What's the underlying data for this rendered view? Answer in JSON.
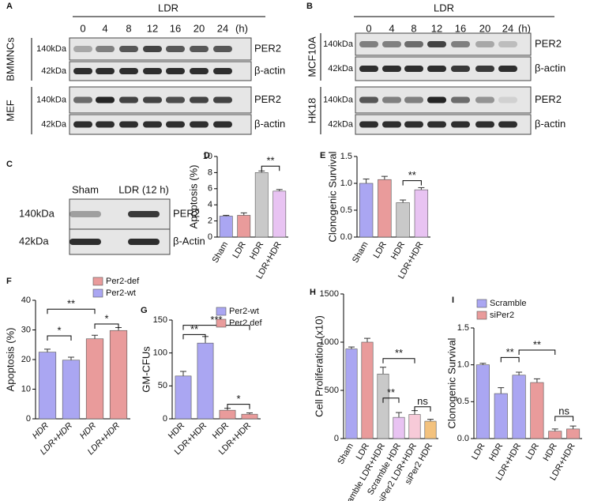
{
  "blots": {
    "A": {
      "label": "A",
      "treatment": "LDR",
      "lanes": [
        "0",
        "4",
        "8",
        "12",
        "16",
        "20",
        "24"
      ],
      "unit": "(h)",
      "groups": [
        {
          "name": "BMMNCs",
          "rows": [
            {
              "kda": "140kDa",
              "protein": "PER2"
            },
            {
              "kda": "42kDa",
              "protein": "β-actin"
            }
          ]
        },
        {
          "name": "MEF",
          "rows": [
            {
              "kda": "140kDa",
              "protein": "PER2"
            },
            {
              "kda": "42kDa",
              "protein": "β-actin"
            }
          ]
        }
      ]
    },
    "B": {
      "label": "B",
      "treatment": "LDR",
      "lanes": [
        "0",
        "4",
        "8",
        "12",
        "16",
        "20",
        "24"
      ],
      "unit": "(h)",
      "groups": [
        {
          "name": "MCF10A",
          "rows": [
            {
              "kda": "140kDa",
              "protein": "PER2"
            },
            {
              "kda": "42kDa",
              "protein": "β-actin"
            }
          ]
        },
        {
          "name": "HK18",
          "rows": [
            {
              "kda": "140kDa",
              "protein": "PER2"
            },
            {
              "kda": "42kDa",
              "protein": "β-actin"
            }
          ]
        }
      ]
    },
    "C": {
      "label": "C",
      "lanes": [
        "Sham",
        "LDR (12 h)"
      ],
      "rows": [
        {
          "kda": "140kDa",
          "protein": "PER2"
        },
        {
          "kda": "42kDa",
          "protein": "β-Actin"
        }
      ]
    }
  },
  "chart_data": [
    {
      "type": "bar",
      "label": "D",
      "y_label": "Apoptosis (%)",
      "categories": [
        "Sham",
        "LDR",
        "HDR",
        "LDR+HDR"
      ],
      "values": [
        2.6,
        2.7,
        8.0,
        5.7
      ],
      "errors": [
        0.1,
        0.3,
        0.2,
        0.2
      ],
      "colors": [
        "#aaa6f2",
        "#e99b9b",
        "#c9c9c9",
        "#e8c3f2"
      ],
      "ylim": [
        0,
        10
      ],
      "yticks": [
        0,
        2,
        4,
        6,
        8,
        10
      ],
      "annotations": [
        "**"
      ]
    },
    {
      "type": "bar",
      "label": "E",
      "y_label": "Clonogenic Survival",
      "categories": [
        "Sham",
        "LDR",
        "HDR",
        "LDR+HDR"
      ],
      "values": [
        1.0,
        1.07,
        0.64,
        0.88
      ],
      "errors": [
        0.08,
        0.06,
        0.05,
        0.04
      ],
      "colors": [
        "#aaa6f2",
        "#e99b9b",
        "#c9c9c9",
        "#e8c3f2"
      ],
      "ylim": [
        0,
        1.5
      ],
      "yticks": [
        {
          "value": 0,
          "label": "0.0"
        },
        0.5,
        {
          "value": 1,
          "label": "1.0"
        },
        1.5
      ],
      "annotations": [
        "**"
      ]
    },
    {
      "type": "bar",
      "label": "F",
      "y_label": "Apoptosis (%)",
      "categories": [
        "HDR",
        "LDR+HDR",
        "HDR",
        "LDR+HDR"
      ],
      "series": [
        {
          "name": "Per2-def",
          "color": "#e99b9b",
          "values": [
            null,
            null,
            27,
            29.8
          ],
          "errors": [
            null,
            null,
            1.2,
            1
          ]
        },
        {
          "name": "Per2-wt",
          "color": "#aaa6f2",
          "values": [
            22.5,
            19.8,
            null,
            null
          ],
          "errors": [
            1,
            1,
            null,
            null
          ]
        }
      ],
      "ylim": [
        0,
        40
      ],
      "yticks": [
        0,
        10,
        20,
        30,
        40
      ],
      "annotations": [
        "**",
        "*",
        "*"
      ]
    },
    {
      "type": "bar",
      "label": "G",
      "y_label": "GM-CFUs",
      "categories": [
        "HDR",
        "LDR+HDR",
        "HDR",
        "LDR+HDR"
      ],
      "series": [
        {
          "name": "Per2-wt",
          "color": "#aaa6f2",
          "values": [
            65,
            115,
            null,
            null
          ],
          "errors": [
            7,
            10,
            null,
            null
          ]
        },
        {
          "name": "Per2 def",
          "color": "#e99b9b",
          "values": [
            null,
            null,
            13,
            7
          ],
          "errors": [
            null,
            null,
            3,
            2
          ]
        }
      ],
      "ylim": [
        0,
        150
      ],
      "yticks": [
        0,
        50,
        100,
        150
      ],
      "annotations": [
        "**",
        "***",
        "*"
      ]
    },
    {
      "type": "bar",
      "label": "H",
      "y_label": "Cell Proliferation (x10)",
      "categories": [
        "Sham",
        "LDR",
        "Scramble LDR+HDR",
        "Scramble HDR",
        "siPer2 LDR+HDR",
        "siPer2 HDR"
      ],
      "values": [
        930,
        1000,
        670,
        220,
        250,
        180
      ],
      "errors": [
        20,
        40,
        70,
        50,
        40,
        20
      ],
      "colors": [
        "#aaa6f2",
        "#e99b9b",
        "#c9c9c9",
        "#e8c3f2",
        "#f7cad8",
        "#f3c27e"
      ],
      "ylim": [
        0,
        1500
      ],
      "yticks": [
        0,
        500,
        1000,
        1500
      ],
      "annotations": [
        "**",
        "**",
        "ns"
      ]
    },
    {
      "type": "bar",
      "label": "I",
      "y_label": "Clonogenic Survival",
      "categories": [
        "LDR",
        "HDR",
        "LDR+HDR",
        "LDR",
        "HDR",
        "LDR+HDR"
      ],
      "series": [
        {
          "name": "Scramble",
          "color": "#aaa6f2",
          "values": [
            1.0,
            0.61,
            0.86,
            null,
            null,
            null
          ],
          "errors": [
            0.02,
            0.08,
            0.04,
            null,
            null,
            null
          ]
        },
        {
          "name": "siPer2",
          "color": "#e99b9b",
          "values": [
            null,
            null,
            null,
            0.76,
            0.1,
            0.13
          ],
          "errors": [
            null,
            null,
            null,
            0.05,
            0.03,
            0.04
          ]
        }
      ],
      "ylim": [
        0,
        1.5
      ],
      "yticks": [
        {
          "value": 0,
          "label": "0.0"
        },
        0.5,
        {
          "value": 1,
          "label": "1.0"
        },
        1.5
      ],
      "annotations": [
        "**",
        "**",
        "ns"
      ]
    }
  ]
}
